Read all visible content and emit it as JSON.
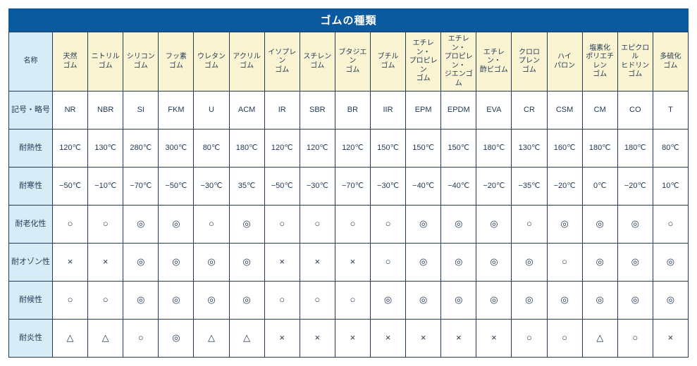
{
  "title": "ゴムの種類",
  "colors": {
    "title_bg": "#0b5aa0",
    "title_text": "#ffffff",
    "row_header_bg": "#d7ecf7",
    "col_header_bg": "#faf4d3",
    "border": "#223a55",
    "text": "#223a55",
    "cell_bg": "#ffffff"
  },
  "corner_label": "名称",
  "columns": [
    {
      "name": "天然\nゴム",
      "symbol": "NR"
    },
    {
      "name": "ニトリル\nゴム",
      "symbol": "NBR"
    },
    {
      "name": "シリコン\nゴム",
      "symbol": "SI"
    },
    {
      "name": "フッ素\nゴム",
      "symbol": "FKM"
    },
    {
      "name": "ウレタン\nゴム",
      "symbol": "U"
    },
    {
      "name": "アクリル\nゴム",
      "symbol": "ACM"
    },
    {
      "name": "イソプレン\nゴム",
      "symbol": "IR"
    },
    {
      "name": "スチレン\nゴム",
      "symbol": "SBR"
    },
    {
      "name": "ブタジエン\nゴム",
      "symbol": "BR"
    },
    {
      "name": "ブチル\nゴム",
      "symbol": "IIR"
    },
    {
      "name": "エチレン・\nプロピレン\nゴム",
      "symbol": "EPM"
    },
    {
      "name": "エチレン・\nプロピレン・\nジエンゴム",
      "symbol": "EPDM"
    },
    {
      "name": "エチレン・\n酢ビゴム",
      "symbol": "EVA"
    },
    {
      "name": "クロロ\nプレン\nゴム",
      "symbol": "CR"
    },
    {
      "name": "ハイ\nパロン",
      "symbol": "CSM"
    },
    {
      "name": "塩素化\nポリエチレン\nゴム",
      "symbol": "CM"
    },
    {
      "name": "エピクロル\nヒドリン\nゴム",
      "symbol": "CO"
    },
    {
      "name": "多硫化\nゴム",
      "symbol": "T"
    }
  ],
  "rows": [
    {
      "label": "記号・略号",
      "type": "symbol"
    },
    {
      "label": "耐熱性",
      "type": "text",
      "values": [
        "120℃",
        "130℃",
        "280℃",
        "300℃",
        "80℃",
        "180℃",
        "120℃",
        "120℃",
        "120℃",
        "150℃",
        "150℃",
        "150℃",
        "180℃",
        "130℃",
        "160℃",
        "180℃",
        "180℃",
        "80℃"
      ]
    },
    {
      "label": "耐寒性",
      "type": "text",
      "values": [
        "−50℃",
        "−10℃",
        "−70℃",
        "−50℃",
        "−30℃",
        "35℃",
        "−50℃",
        "−30℃",
        "−70℃",
        "−30℃",
        "−40℃",
        "−40℃",
        "−20℃",
        "−35℃",
        "−20℃",
        "0℃",
        "−20℃",
        "10℃"
      ]
    },
    {
      "label": "耐老化性",
      "type": "sym",
      "values": [
        "○",
        "○",
        "◎",
        "◎",
        "○",
        "◎",
        "○",
        "○",
        "○",
        "○",
        "◎",
        "◎",
        "◎",
        "○",
        "◎",
        "◎",
        "◎",
        "○"
      ]
    },
    {
      "label": "耐オゾン性",
      "type": "sym",
      "values": [
        "×",
        "×",
        "◎",
        "◎",
        "◎",
        "◎",
        "×",
        "×",
        "×",
        "○",
        "◎",
        "◎",
        "◎",
        "◎",
        "○",
        "◎",
        "◎",
        "◎"
      ]
    },
    {
      "label": "耐候性",
      "type": "sym",
      "values": [
        "○",
        "○",
        "◎",
        "◎",
        "◎",
        "◎",
        "○",
        "○",
        "○",
        "◎",
        "◎",
        "◎",
        "◎",
        "◎",
        "◎",
        "◎",
        "◎",
        "◎"
      ]
    },
    {
      "label": "耐炎性",
      "type": "sym",
      "values": [
        "△",
        "△",
        "○",
        "◎",
        "△",
        "△",
        "×",
        "×",
        "×",
        "×",
        "×",
        "×",
        "×",
        "○",
        "○",
        "△",
        "○",
        "×"
      ]
    }
  ]
}
